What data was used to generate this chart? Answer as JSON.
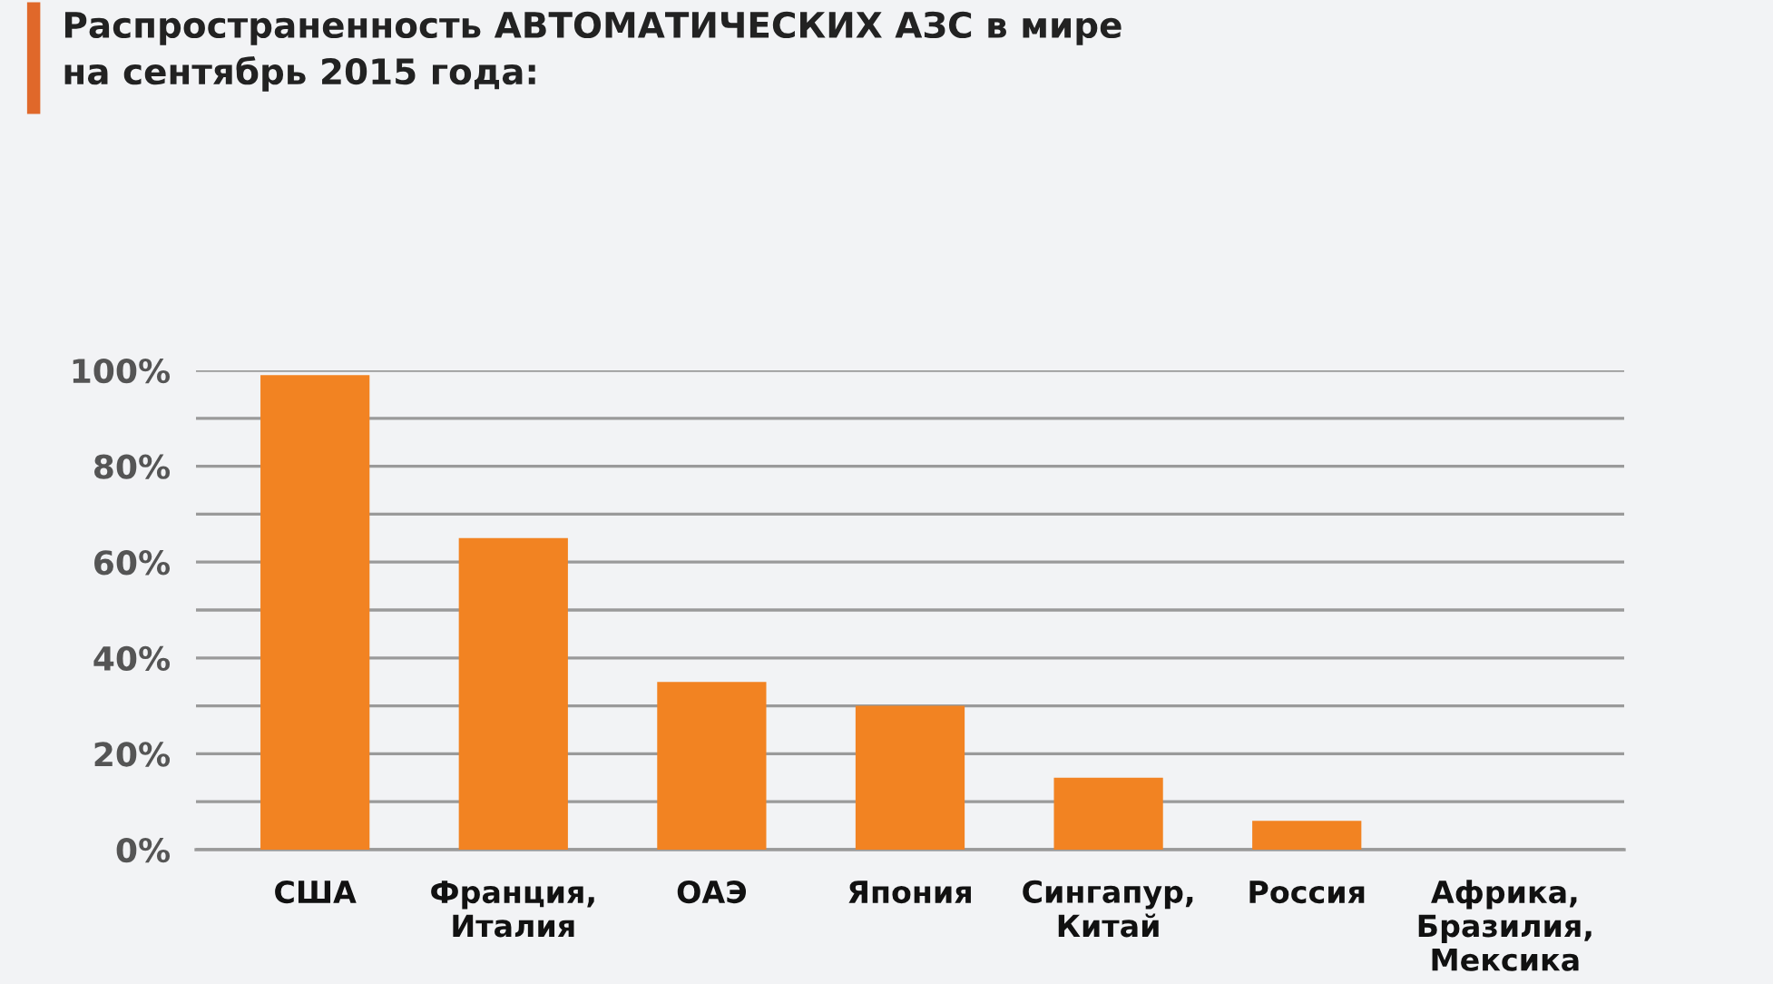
{
  "chart_data": {
    "type": "bar",
    "title": "Распространенность АВТОМАТИЧЕСКИХ АЗС в мире\nна сентябрь 2015 года:",
    "categories": [
      "США",
      "Франция,\nИталия",
      "ОАЭ",
      "Япония",
      "Сингапур,\nКитай",
      "Россия",
      "Африка,\nБразилия,\nМексика"
    ],
    "values": [
      99,
      65,
      35,
      30,
      15,
      6,
      0
    ],
    "color": "#f28322",
    "ylim": [
      0,
      100
    ],
    "yticks": [
      {
        "value": 0,
        "label": "0%"
      },
      {
        "value": 10,
        "label": null
      },
      {
        "value": 20,
        "label": "20%"
      },
      {
        "value": 30,
        "label": null
      },
      {
        "value": 40,
        "label": "40%"
      },
      {
        "value": 50,
        "label": null
      },
      {
        "value": 60,
        "label": "60%"
      },
      {
        "value": 70,
        "label": null
      },
      {
        "value": 80,
        "label": "80%"
      },
      {
        "value": 90,
        "label": null
      },
      {
        "value": 100,
        "label": "100%"
      }
    ],
    "grid": "y"
  }
}
